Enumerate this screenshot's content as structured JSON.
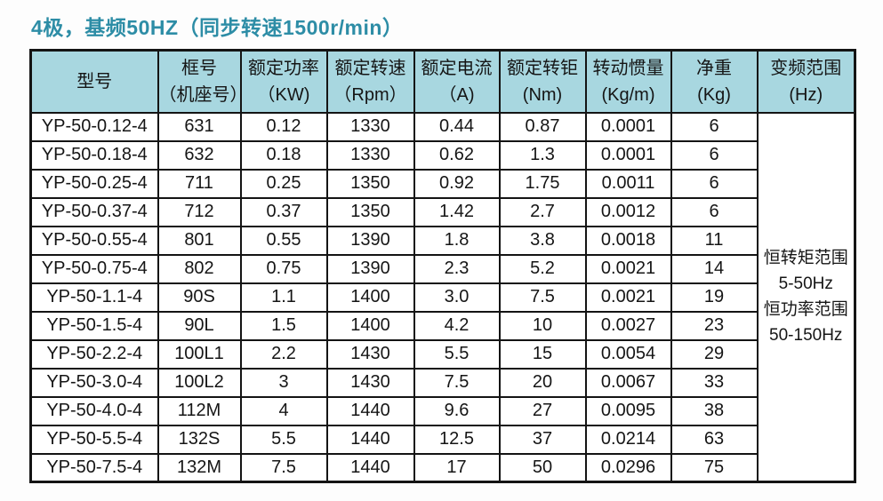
{
  "title": "4极，基频50HZ（同步转速1500r/min）",
  "colors": {
    "title_text": "#2d8da6",
    "header_bg": "#a8d7e0",
    "border": "#141414",
    "cell_bg": "#ffffff"
  },
  "table": {
    "headers": [
      {
        "line1": "型号",
        "line2": ""
      },
      {
        "line1": "框号",
        "line2": "（机座号）"
      },
      {
        "line1": "额定功率",
        "line2": "（KW)"
      },
      {
        "line1": "额定转速",
        "line2": "（Rpm）"
      },
      {
        "line1": "额定电流",
        "line2": "（A)"
      },
      {
        "line1": "额定转钜",
        "line2": "(Nm)"
      },
      {
        "line1": "转动惯量",
        "line2": "(Kg/m)"
      },
      {
        "line1": "净重",
        "line2": "(Kg)"
      },
      {
        "line1": "变频范围",
        "line2": "(Hz)"
      }
    ],
    "column_keys": [
      "model",
      "frame",
      "power",
      "speed",
      "current",
      "torque",
      "inertia",
      "weight"
    ],
    "rows": [
      [
        "YP-50-0.12-4",
        "631",
        "0.12",
        "1330",
        "0.44",
        "0.87",
        "0.0001",
        "6"
      ],
      [
        "YP-50-0.18-4",
        "632",
        "0.18",
        "1330",
        "0.62",
        "1.3",
        "0.0001",
        "6"
      ],
      [
        "YP-50-0.25-4",
        "711",
        "0.25",
        "1350",
        "0.92",
        "1.75",
        "0.0011",
        "6"
      ],
      [
        "YP-50-0.37-4",
        "712",
        "0.37",
        "1350",
        "1.42",
        "2.7",
        "0.0012",
        "6"
      ],
      [
        "YP-50-0.55-4",
        "801",
        "0.55",
        "1390",
        "1.8",
        "3.8",
        "0.0018",
        "11"
      ],
      [
        "YP-50-0.75-4",
        "802",
        "0.75",
        "1390",
        "2.3",
        "5.2",
        "0.0021",
        "14"
      ],
      [
        "YP-50-1.1-4",
        "90S",
        "1.1",
        "1400",
        "3.0",
        "7.5",
        "0.0021",
        "19"
      ],
      [
        "YP-50-1.5-4",
        "90L",
        "1.5",
        "1400",
        "4.2",
        "10",
        "0.0027",
        "23"
      ],
      [
        "YP-50-2.2-4",
        "100L1",
        "2.2",
        "1430",
        "5.5",
        "15",
        "0.0054",
        "29"
      ],
      [
        "YP-50-3.0-4",
        "100L2",
        "3",
        "1430",
        "7.5",
        "20",
        "0.0067",
        "33"
      ],
      [
        "YP-50-4.0-4",
        "112M",
        "4",
        "1440",
        "9.6",
        "27",
        "0.0095",
        "38"
      ],
      [
        "YP-50-5.5-4",
        "132S",
        "5.5",
        "1440",
        "12.5",
        "37",
        "0.0214",
        "63"
      ],
      [
        "YP-50-7.5-4",
        "132M",
        "7.5",
        "1440",
        "17",
        "50",
        "0.0296",
        "75"
      ]
    ],
    "freq_range_cell": [
      "恒转矩范围",
      "5-50Hz",
      "恒功率范围",
      "50-150Hz"
    ]
  }
}
